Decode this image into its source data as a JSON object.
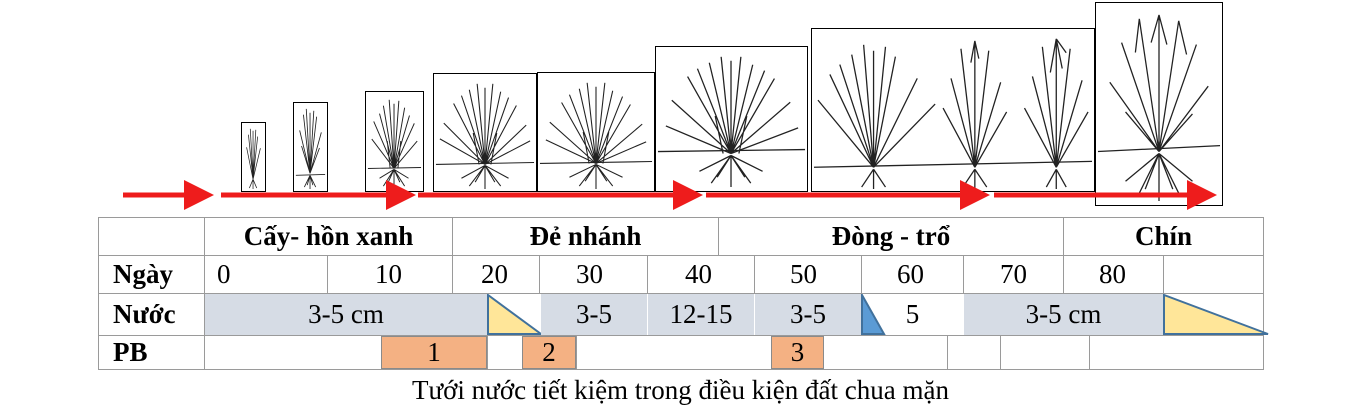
{
  "stages": [
    "Cấy- hồn xanh",
    "Đẻ nhánh",
    "Đòng - trổ",
    "Chín"
  ],
  "rows": {
    "day_label": "Ngày",
    "water_label": "Nước",
    "pb_label": "PB"
  },
  "days": [
    "0",
    "10",
    "20",
    "30",
    "40",
    "50",
    "60",
    "70",
    "80"
  ],
  "water": [
    "3-5 cm",
    "3-5",
    "12-15",
    "3-5",
    "5",
    "3-5 cm"
  ],
  "pb": [
    "1",
    "2",
    "3"
  ],
  "caption": "Tưới nước tiết kiệm trong điều kiện đất chua mặn",
  "colors": {
    "arrow": "#ee1c1c",
    "water_fill": "#d6dce5",
    "pb_fill": "#f4b183",
    "drain_triangle": "#ffe699",
    "blue_triangle": "#5b9bd5",
    "triangle_stroke": "#41719c"
  }
}
